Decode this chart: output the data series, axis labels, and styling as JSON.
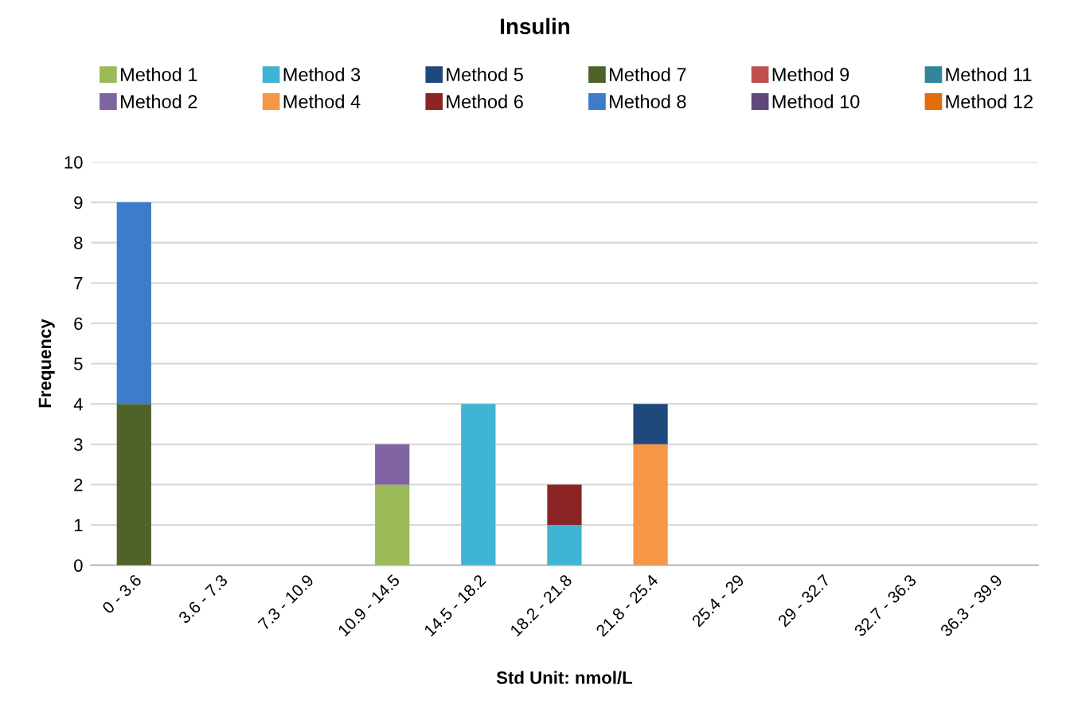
{
  "chart_data": {
    "type": "bar",
    "title": "Insulin",
    "xlabel": "Std Unit: nmol/L",
    "ylabel": "Frequency",
    "categories": [
      "0 - 3.6",
      "3.6 - 7.3",
      "7.3 - 10.9",
      "10.9 - 14.5",
      "14.5 - 18.2",
      "18.2 - 21.8",
      "21.8 - 25.4",
      "25.4 - 29",
      "29 - 32.7",
      "32.7 - 36.3",
      "36.3 - 39.9"
    ],
    "stacked": true,
    "ylim": [
      0,
      10
    ],
    "yticks": [
      0,
      1,
      2,
      3,
      4,
      5,
      6,
      7,
      8,
      9,
      10
    ],
    "grid": "y",
    "legend": "top",
    "series": [
      {
        "name": "Method 1",
        "color": "#9bbb59",
        "values": [
          null,
          null,
          null,
          2,
          null,
          null,
          null,
          null,
          null,
          null,
          null
        ]
      },
      {
        "name": "Method 2",
        "color": "#8064a2",
        "values": [
          null,
          null,
          null,
          1,
          null,
          null,
          null,
          null,
          null,
          null,
          null
        ]
      },
      {
        "name": "Method 3",
        "color": "#3fb4d4",
        "values": [
          null,
          null,
          null,
          null,
          4,
          1,
          null,
          null,
          null,
          null,
          null
        ]
      },
      {
        "name": "Method 4",
        "color": "#f79646",
        "values": [
          null,
          null,
          null,
          null,
          null,
          null,
          3,
          null,
          null,
          null,
          null
        ]
      },
      {
        "name": "Method 5",
        "color": "#1f497d",
        "values": [
          null,
          null,
          null,
          null,
          null,
          null,
          1,
          null,
          null,
          null,
          null
        ]
      },
      {
        "name": "Method 6",
        "color": "#8b2525",
        "values": [
          null,
          null,
          null,
          null,
          null,
          1,
          null,
          null,
          null,
          null,
          null
        ]
      },
      {
        "name": "Method 7",
        "color": "#4f6228",
        "values": [
          4,
          null,
          null,
          null,
          null,
          null,
          null,
          null,
          null,
          null,
          null
        ]
      },
      {
        "name": "Method 8",
        "color": "#3c7cc8",
        "values": [
          5,
          null,
          null,
          null,
          null,
          null,
          null,
          null,
          null,
          null,
          null
        ]
      },
      {
        "name": "Method 9",
        "color": "#c0504d",
        "values": [
          null,
          null,
          null,
          null,
          null,
          null,
          null,
          null,
          null,
          null,
          null
        ]
      },
      {
        "name": "Method 10",
        "color": "#5f497a",
        "values": [
          null,
          null,
          null,
          null,
          null,
          null,
          null,
          null,
          null,
          null,
          null
        ]
      },
      {
        "name": "Method 11",
        "color": "#31859c",
        "values": [
          null,
          null,
          null,
          null,
          null,
          null,
          null,
          null,
          null,
          null,
          null
        ]
      },
      {
        "name": "Method 12",
        "color": "#e46c0a",
        "values": [
          null,
          null,
          null,
          null,
          null,
          null,
          null,
          null,
          null,
          null,
          null
        ]
      }
    ]
  }
}
